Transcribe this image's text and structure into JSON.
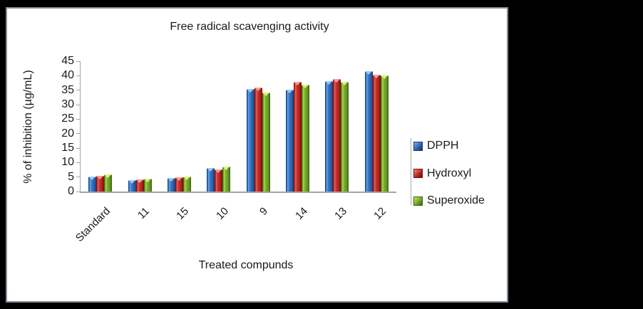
{
  "frame": {
    "background_color": "#000000",
    "panel_color": "#ffffff",
    "panel_border_color": "#838d94",
    "axis_color": "#a3a3a3"
  },
  "chart_data": {
    "type": "bar",
    "title": "Free radical scavenging activity",
    "xlabel": "Treated compunds",
    "ylabel": "% of inhibition (µg/mL)",
    "categories": [
      "Standard",
      "11",
      "15",
      "10",
      "9",
      "14",
      "13",
      "12"
    ],
    "series": [
      {
        "name": "DPPH",
        "color": "#3573c4",
        "values": [
          5.2,
          3.9,
          4.7,
          8.0,
          35.3,
          35.1,
          38.2,
          41.5
        ]
      },
      {
        "name": "Hydroxyl",
        "color": "#c62d26",
        "values": [
          5.4,
          4.3,
          4.9,
          7.6,
          35.8,
          37.9,
          38.8,
          40.4
        ]
      },
      {
        "name": "Superoxide",
        "color": "#77ab2e",
        "values": [
          5.8,
          4.5,
          5.1,
          8.6,
          34.2,
          36.8,
          37.9,
          40.1
        ]
      }
    ],
    "ylim": [
      0,
      45
    ],
    "yticks": [
      0,
      5,
      10,
      15,
      20,
      25,
      30,
      35,
      40,
      45
    ],
    "grid": false,
    "legend_position": "right",
    "bar_style": "3d-beveled"
  }
}
